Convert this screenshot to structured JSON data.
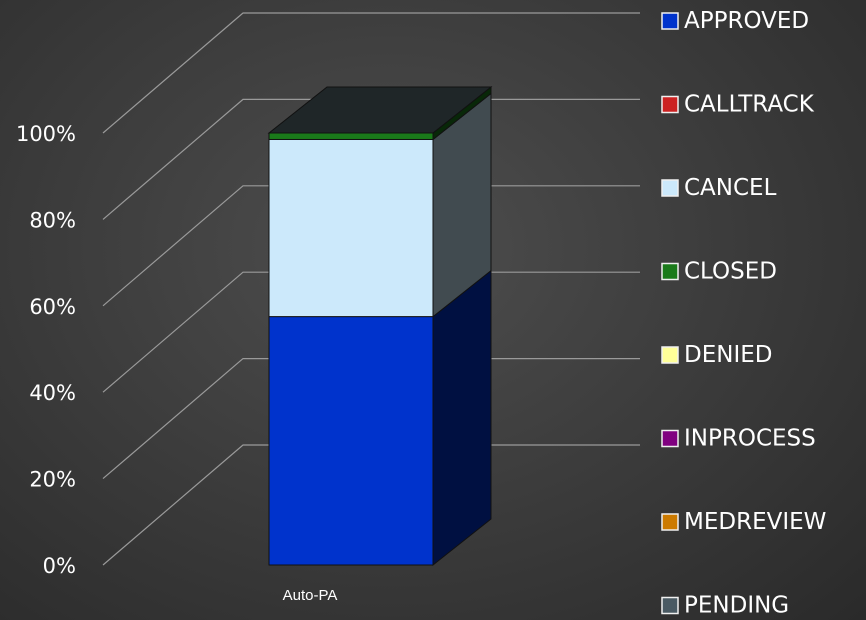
{
  "chart_data": {
    "type": "bar",
    "stacked": "percent",
    "three_d": true,
    "categories": [
      "Auto-PA"
    ],
    "series": [
      {
        "name": "APPROVED",
        "values": [
          57.5
        ],
        "color": "#0033cc"
      },
      {
        "name": "CALLTRACK",
        "values": [
          0
        ],
        "color": "#cc2222"
      },
      {
        "name": "CANCEL",
        "values": [
          41
        ],
        "color": "#cce9fb"
      },
      {
        "name": "CLOSED",
        "values": [
          1.5
        ],
        "color": "#1a7a1a"
      },
      {
        "name": "DENIED",
        "values": [
          0
        ],
        "color": "#ffff99"
      },
      {
        "name": "INPROCESS",
        "values": [
          0
        ],
        "color": "#800080"
      },
      {
        "name": "MEDREVIEW",
        "values": [
          0
        ],
        "color": "#cc7a00"
      },
      {
        "name": "PENDING",
        "values": [
          0
        ],
        "color": "#4a5a63"
      }
    ],
    "y_ticks": [
      "0%",
      "20%",
      "40%",
      "60%",
      "80%",
      "100%"
    ],
    "ylim": [
      0,
      100
    ],
    "grid": true,
    "legend_position": "right"
  }
}
